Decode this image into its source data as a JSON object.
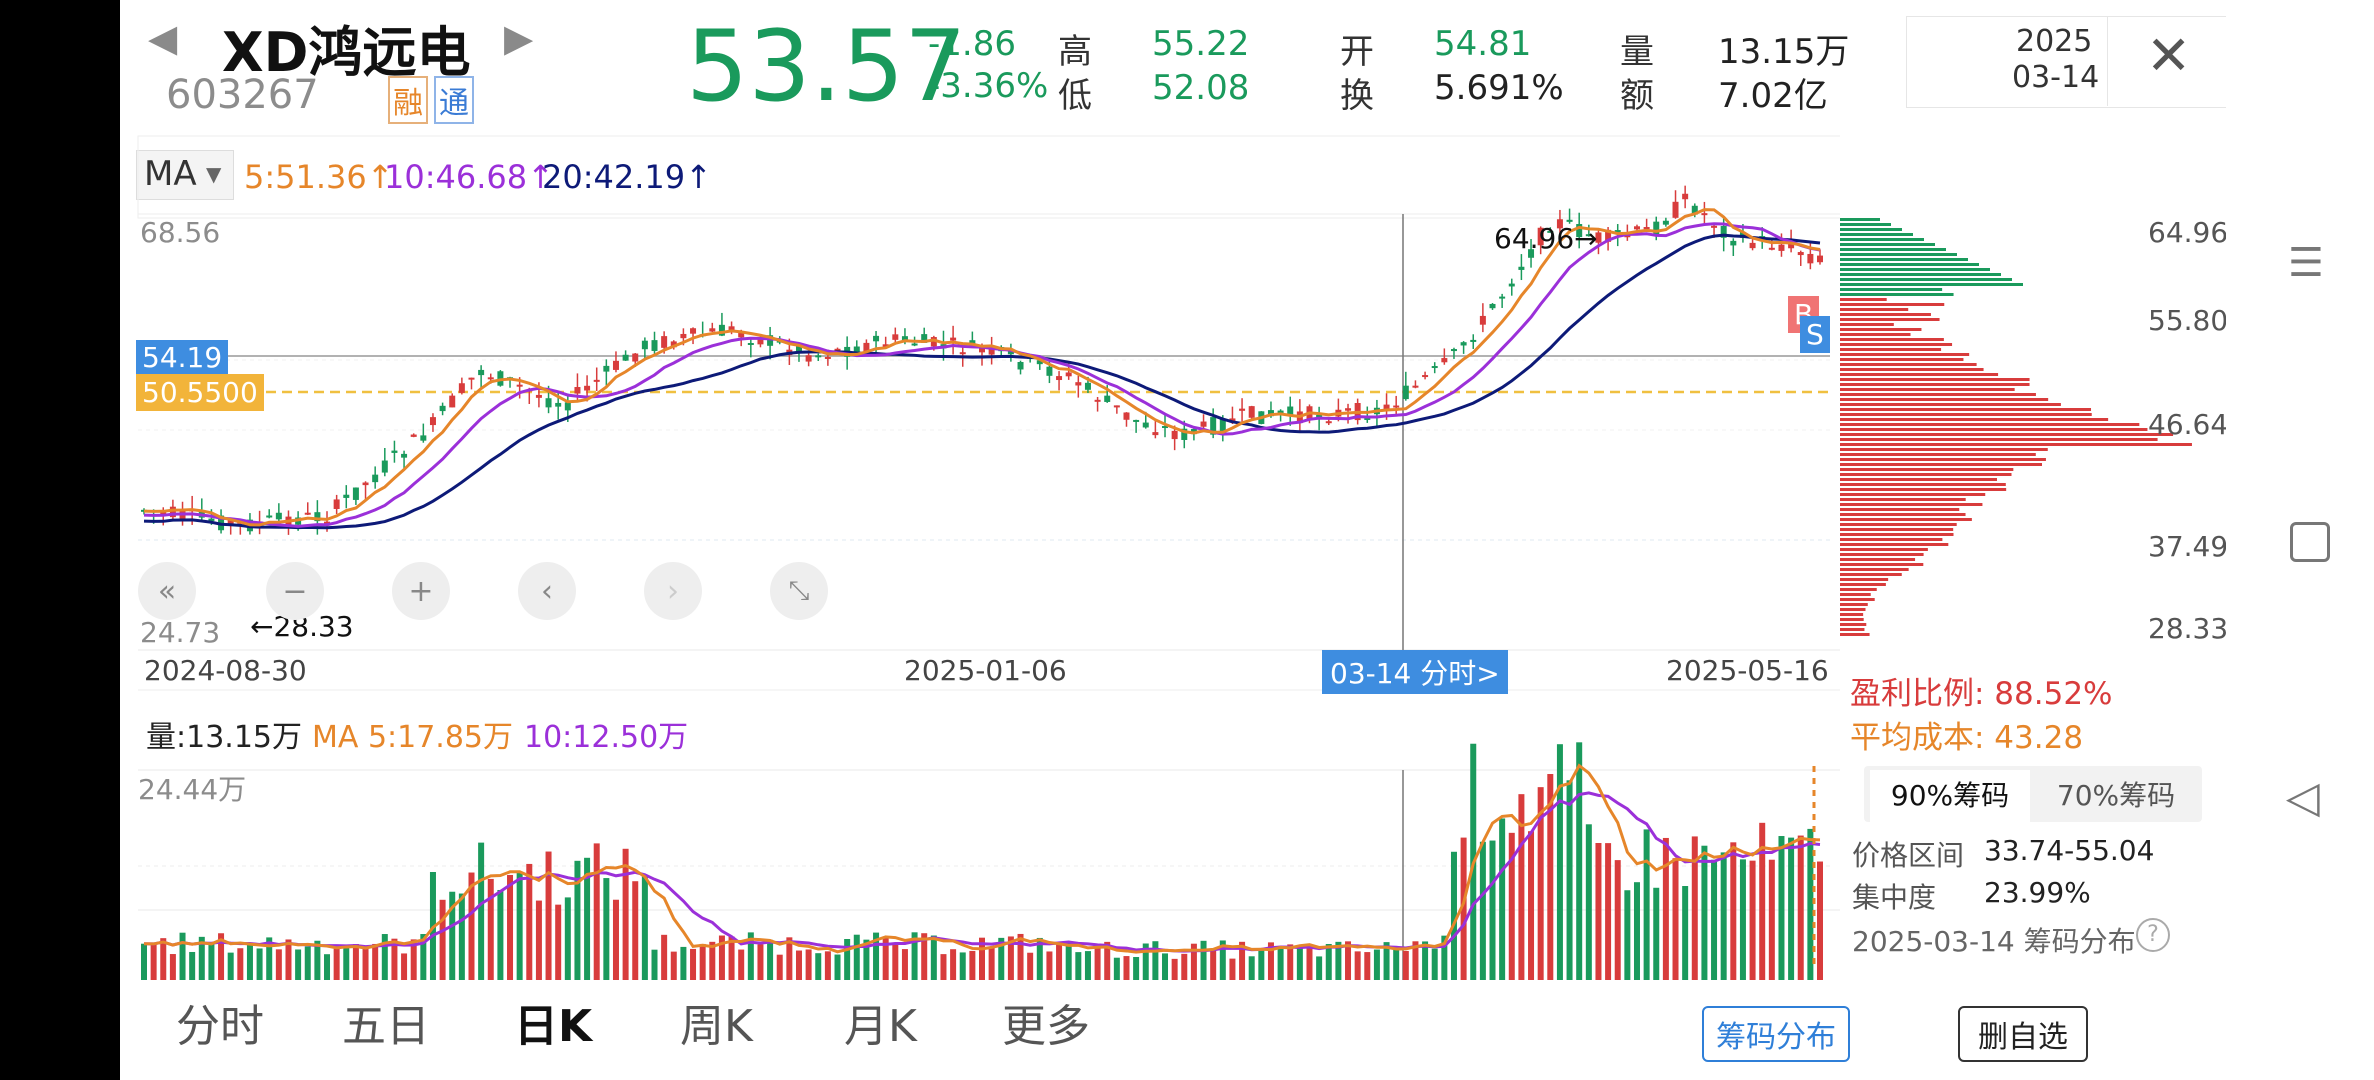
{
  "header": {
    "name": "XD鸿远电",
    "code": "603267",
    "tag_rong": "融",
    "tag_tong": "通",
    "price": "53.57",
    "change": "-1.86",
    "change_pct": "-3.36%",
    "stats": [
      {
        "label": "高",
        "value": "55.22"
      },
      {
        "label": "低",
        "value": "52.08"
      },
      {
        "label": "开",
        "value": "54.81"
      },
      {
        "label": "换",
        "value": "5.691%"
      },
      {
        "label": "量",
        "value": "13.15万"
      },
      {
        "label": "额",
        "value": "7.02亿"
      }
    ],
    "date_year": "2025",
    "date_md": "03-14"
  },
  "ma_bar": {
    "selector": "MA",
    "ma5": "5:51.36↑",
    "ma10": "10:46.68↑",
    "ma20": "20:42.19↑"
  },
  "price_chart": {
    "y_top_label": "68.56",
    "y_bottom_label": "24.73",
    "high_annotation": "64.96→",
    "low_annotation": "←28.33",
    "hline_price": "54.19",
    "cost_line": "50.5500",
    "x_labels": [
      "2024-08-30",
      "2025-01-06",
      "2025-05-16"
    ],
    "cursor_label": "03-14 分时>",
    "marker_b": "B",
    "marker_s": "S"
  },
  "chips": {
    "y_labels": [
      "64.96",
      "55.80",
      "46.64",
      "37.49",
      "28.33"
    ],
    "profit_ratio_label": "盈利比例: 88.52%",
    "avg_cost_label": "平均成本: 43.28",
    "tabs": [
      "90%筹码",
      "70%筹码"
    ],
    "price_range_label": "价格区间",
    "price_range_value": "33.74-55.04",
    "concentration_label": "集中度",
    "concentration_value": "23.99%",
    "footer": "2025-03-14 筹码分布"
  },
  "volume": {
    "vol_label": "量:13.15万",
    "ma5": "MA 5:17.85万",
    "ma10": "10:12.50万",
    "y_top_label": "24.44万"
  },
  "tabs": [
    "分时",
    "五日",
    "日K",
    "周K",
    "月K",
    "更多"
  ],
  "active_tab": "日K",
  "buttons": {
    "chips": "筹码分布",
    "remove_watch": "删自选"
  },
  "colors": {
    "up": "#d83c3c",
    "down": "#1a9a5c",
    "ma5": "#e6862a",
    "ma10": "#9b30d9",
    "ma20": "#0d1a78"
  }
}
